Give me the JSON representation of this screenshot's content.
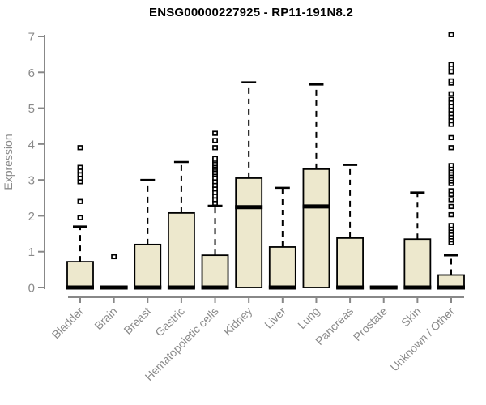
{
  "chart_data": {
    "type": "boxplot",
    "title": "ENSG00000227925 - RP11-191N8.2",
    "ylabel": "Expression",
    "xlabel": "",
    "ylim": [
      0,
      7
    ],
    "yticks": [
      0,
      1,
      2,
      3,
      4,
      5,
      6,
      7
    ],
    "grid": false,
    "legend": "none",
    "categories": [
      "Bladder",
      "Brain",
      "Breast",
      "Gastric",
      "Hematopoietic cells",
      "Kidney",
      "Liver",
      "Lung",
      "Pancreas",
      "Prostate",
      "Skin",
      "Unknown / Other"
    ],
    "series": [
      {
        "label": "Bladder",
        "q1": 0,
        "median": 0,
        "q3": 0.72,
        "whisker_low": 0,
        "whisker_high": 1.7,
        "outliers": [
          1.95,
          2.4,
          2.95,
          3.05,
          3.15,
          3.25,
          3.35,
          3.9
        ]
      },
      {
        "label": "Brain",
        "q1": 0,
        "median": 0,
        "q3": 0.03,
        "whisker_low": 0,
        "whisker_high": 0.03,
        "outliers": [
          0.86
        ]
      },
      {
        "label": "Breast",
        "q1": 0,
        "median": 0,
        "q3": 1.2,
        "whisker_low": 0,
        "whisker_high": 3.0,
        "outliers": []
      },
      {
        "label": "Gastric",
        "q1": 0,
        "median": 0,
        "q3": 2.08,
        "whisker_low": 0,
        "whisker_high": 3.5,
        "outliers": []
      },
      {
        "label": "Hematopoietic cells",
        "q1": 0,
        "median": 0,
        "q3": 0.9,
        "whisker_low": 0,
        "whisker_high": 2.28,
        "outliers": [
          2.35,
          2.45,
          2.55,
          2.65,
          2.75,
          2.85,
          2.95,
          3.05,
          3.15,
          3.2,
          3.25,
          3.3,
          3.35,
          3.4,
          3.45,
          3.5,
          3.55,
          3.6,
          3.9,
          4.1,
          4.3
        ]
      },
      {
        "label": "Kidney",
        "q1": 0,
        "median": 2.24,
        "q3": 3.05,
        "whisker_low": 0,
        "whisker_high": 5.72,
        "outliers": []
      },
      {
        "label": "Liver",
        "q1": 0,
        "median": 0,
        "q3": 1.13,
        "whisker_low": 0,
        "whisker_high": 2.78,
        "outliers": []
      },
      {
        "label": "Lung",
        "q1": 0,
        "median": 2.26,
        "q3": 3.3,
        "whisker_low": 0,
        "whisker_high": 5.66,
        "outliers": []
      },
      {
        "label": "Pancreas",
        "q1": 0,
        "median": 0,
        "q3": 1.38,
        "whisker_low": 0,
        "whisker_high": 3.42,
        "outliers": []
      },
      {
        "label": "Prostate",
        "q1": 0,
        "median": 0,
        "q3": 0.03,
        "whisker_low": 0,
        "whisker_high": 0.03,
        "outliers": []
      },
      {
        "label": "Skin",
        "q1": 0,
        "median": 0,
        "q3": 1.35,
        "whisker_low": 0,
        "whisker_high": 2.65,
        "outliers": []
      },
      {
        "label": "Unknown / Other",
        "q1": 0,
        "median": 0,
        "q3": 0.35,
        "whisker_low": 0,
        "whisker_high": 0.9,
        "outliers": [
          1.25,
          1.33,
          1.41,
          1.49,
          1.57,
          1.65,
          1.73,
          2.03,
          2.26,
          2.45,
          2.6,
          2.7,
          2.9,
          2.97,
          3.04,
          3.11,
          3.18,
          3.25,
          3.32,
          3.4,
          3.9,
          4.18,
          4.55,
          4.65,
          4.75,
          4.85,
          4.95,
          5.05,
          5.15,
          5.25,
          5.4,
          5.7,
          5.76,
          6.02,
          6.12,
          6.22,
          7.05
        ]
      }
    ],
    "colors": {
      "box_fill": "#ede8cd",
      "box_border": "#000000",
      "median": "#000000",
      "whisker": "#000000",
      "outlier": "#000000",
      "axis": "#888888",
      "tick_label": "#8a8a8a",
      "title": "#000000"
    }
  }
}
